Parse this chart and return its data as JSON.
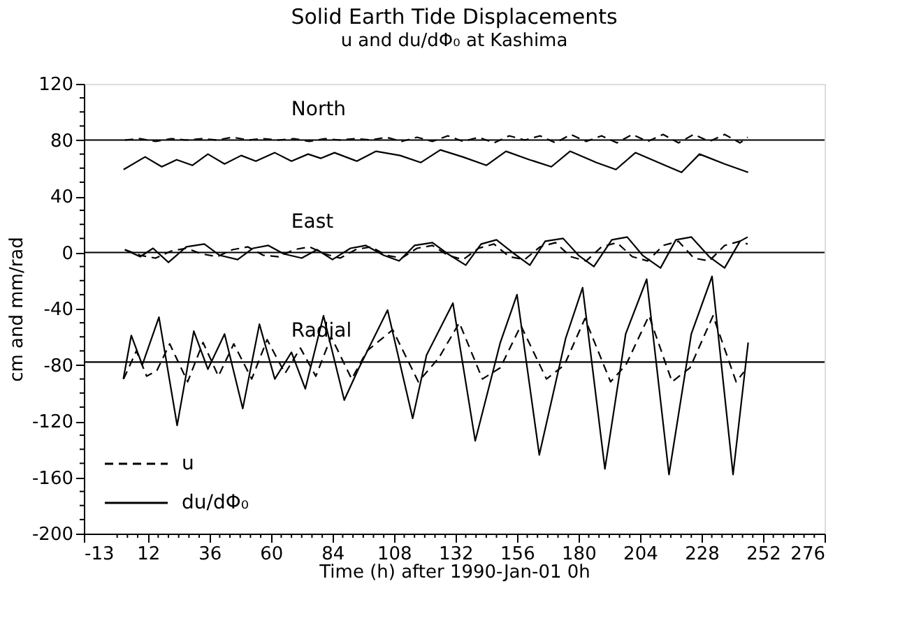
{
  "chart_data": {
    "type": "line",
    "title": "Solid Earth Tide Displacements",
    "subtitle": "u and du/dΦ₀ at Kashima",
    "xlabel": "Time (h) after 1990-Jan-01 0h",
    "ylabel": "cm and mm/rad",
    "xlim": [
      -13,
      276
    ],
    "ylim": [
      -200,
      120
    ],
    "xticks": [
      -13,
      {
        "value": 0,
        "label": null
      },
      {
        "value": 4,
        "label": null
      },
      {
        "value": 8,
        "label": null
      },
      12,
      {
        "value": 16,
        "label": null
      },
      {
        "value": 20,
        "label": null
      },
      {
        "value": 24,
        "label": null
      },
      {
        "value": 28,
        "label": null
      },
      {
        "value": 32,
        "label": null
      },
      36,
      {
        "value": 40,
        "label": null
      },
      {
        "value": 44,
        "label": null
      },
      {
        "value": 48,
        "label": null
      },
      {
        "value": 52,
        "label": null
      },
      {
        "value": 56,
        "label": null
      },
      60,
      {
        "value": 64,
        "label": null
      },
      {
        "value": 68,
        "label": null
      },
      {
        "value": 72,
        "label": null
      },
      {
        "value": 76,
        "label": null
      },
      {
        "value": 80,
        "label": null
      },
      84,
      {
        "value": 88,
        "label": null
      },
      {
        "value": 92,
        "label": null
      },
      {
        "value": 96,
        "label": null
      },
      {
        "value": 100,
        "label": null
      },
      {
        "value": 104,
        "label": null
      },
      108,
      {
        "value": 112,
        "label": null
      },
      {
        "value": 116,
        "label": null
      },
      {
        "value": 120,
        "label": null
      },
      {
        "value": 124,
        "label": null
      },
      {
        "value": 128,
        "label": null
      },
      132,
      {
        "value": 136,
        "label": null
      },
      {
        "value": 140,
        "label": null
      },
      {
        "value": 144,
        "label": null
      },
      {
        "value": 148,
        "label": null
      },
      {
        "value": 152,
        "label": null
      },
      156,
      {
        "value": 160,
        "label": null
      },
      {
        "value": 164,
        "label": null
      },
      {
        "value": 168,
        "label": null
      },
      {
        "value": 172,
        "label": null
      },
      {
        "value": 176,
        "label": null
      },
      180,
      {
        "value": 184,
        "label": null
      },
      {
        "value": 188,
        "label": null
      },
      {
        "value": 192,
        "label": null
      },
      {
        "value": 196,
        "label": null
      },
      {
        "value": 200,
        "label": null
      },
      204,
      {
        "value": 208,
        "label": null
      },
      {
        "value": 212,
        "label": null
      },
      {
        "value": 216,
        "label": null
      },
      {
        "value": 220,
        "label": null
      },
      {
        "value": 224,
        "label": null
      },
      228,
      {
        "value": 232,
        "label": null
      },
      {
        "value": 236,
        "label": null
      },
      {
        "value": 240,
        "label": null
      },
      {
        "value": 244,
        "label": null
      },
      {
        "value": 248,
        "label": null
      },
      252,
      {
        "value": 256,
        "label": null
      },
      {
        "value": 260,
        "label": null
      },
      {
        "value": 264,
        "label": null
      },
      {
        "value": 268,
        "label": null
      },
      {
        "value": 272,
        "label": null
      },
      276
    ],
    "yticks": [
      -200,
      {
        "value": -190,
        "label": null
      },
      {
        "value": -180,
        "label": null
      },
      {
        "value": -170,
        "label": null
      },
      -160,
      {
        "value": -150,
        "label": null
      },
      {
        "value": -140,
        "label": null
      },
      {
        "value": -130,
        "label": null
      },
      -120,
      {
        "value": -110,
        "label": null
      },
      {
        "value": -100,
        "label": null
      },
      {
        "value": -90,
        "label": null
      },
      -80,
      {
        "value": -70,
        "label": null
      },
      {
        "value": -60,
        "label": null
      },
      {
        "value": -50,
        "label": null
      },
      -40,
      {
        "value": -30,
        "label": null
      },
      {
        "value": -20,
        "label": null
      },
      {
        "value": -10,
        "label": null
      },
      0,
      {
        "value": 10,
        "label": null
      },
      {
        "value": 20,
        "label": null
      },
      {
        "value": 30,
        "label": null
      },
      40,
      {
        "value": 50,
        "label": null
      },
      {
        "value": 60,
        "label": null
      },
      {
        "value": 70,
        "label": null
      },
      80,
      {
        "value": 90,
        "label": null
      },
      {
        "value": 100,
        "label": null
      },
      {
        "value": 110,
        "label": null
      },
      120
    ],
    "grid": false,
    "legend": "bottom left",
    "marker": "none",
    "ref_lines": [
      {
        "axis": "y",
        "value": 80,
        "color": "#000000"
      },
      {
        "axis": "y",
        "value": 0,
        "color": "#000000"
      },
      {
        "axis": "y",
        "value": -78,
        "color": "#000000"
      }
    ],
    "annotations": [
      "North",
      "East",
      "Radial"
    ],
    "series": [
      {
        "name": "u",
        "color": "#000000",
        "line_style": "dashed",
        "x": [
          3,
          9,
          15,
          21,
          27,
          33,
          39,
          45,
          51,
          57,
          63,
          69,
          75,
          81,
          87,
          93,
          99,
          105,
          111,
          117,
          123,
          129,
          135,
          141,
          147,
          153,
          159,
          165,
          171,
          177,
          183,
          189,
          195,
          201,
          207,
          213,
          219,
          225,
          231,
          237,
          243,
          246
        ],
        "values": [
          80,
          81,
          79,
          81,
          80,
          81,
          80,
          82,
          80,
          81,
          80,
          81,
          79,
          81,
          80,
          81,
          80,
          82,
          79,
          82,
          79,
          83,
          79,
          82,
          78,
          83,
          80,
          83,
          78,
          84,
          79,
          83,
          78,
          84,
          79,
          84,
          78,
          84,
          79,
          84,
          78,
          82
        ]
      },
      {
        "name": "du/dΦ₀",
        "color": "#000000",
        "line_style": "solid",
        "x": [
          2.5,
          10.9,
          17.4,
          23.2,
          29.4,
          35.4,
          41.9,
          48.4,
          54.1,
          61.5,
          68,
          74.5,
          79.4,
          84.8,
          93.5,
          101,
          110.4,
          118.5,
          126.1,
          134.8,
          144.1,
          151.7,
          160.9,
          169.4,
          176.7,
          187,
          194.6,
          202.2,
          212.5,
          220.2,
          227.2,
          237,
          246.2
        ],
        "values": [
          59,
          68,
          61,
          66,
          62,
          70,
          63,
          69,
          65,
          71,
          65,
          70,
          67,
          71,
          65,
          72,
          69,
          64,
          73,
          68,
          62,
          72,
          66,
          61,
          72,
          64,
          59,
          71,
          63,
          57,
          70,
          63,
          57
        ]
      },
      {
        "color": "#000000",
        "line_style": "dashed",
        "x": [
          3,
          9,
          15,
          21,
          27,
          33,
          39,
          45,
          51,
          57,
          63,
          69,
          75,
          81,
          87,
          93,
          99,
          105,
          111,
          117,
          123,
          129,
          135,
          141,
          147,
          153,
          159,
          165,
          171,
          177,
          183,
          189,
          195,
          201,
          207,
          213,
          219,
          225,
          231,
          237,
          243,
          246
        ],
        "values": [
          2,
          -2,
          -4,
          1,
          3,
          -1,
          -3,
          2,
          4,
          -2,
          -3,
          2,
          4,
          -1,
          -4,
          2,
          4,
          -2,
          -4,
          3,
          5,
          -2,
          -5,
          3,
          6,
          -3,
          -5,
          4,
          7,
          -3,
          -6,
          4,
          7,
          -3,
          -6,
          5,
          8,
          -4,
          -6,
          5,
          8,
          6
        ]
      },
      {
        "color": "#000000",
        "line_style": "solid",
        "x": [
          3,
          9,
          14,
          20,
          27,
          34,
          40,
          47,
          53,
          59,
          65,
          72,
          78,
          84,
          91,
          97,
          104,
          110,
          116,
          123,
          129,
          136,
          142,
          148,
          155,
          161,
          167,
          174,
          180,
          186,
          193,
          199,
          205,
          212,
          218,
          224,
          231,
          237,
          243,
          246
        ],
        "values": [
          2,
          -3,
          3,
          -7,
          4,
          6,
          -2,
          -5,
          3,
          5,
          -1,
          -4,
          2,
          -5,
          3,
          5,
          -2,
          -6,
          5,
          7,
          -1,
          -9,
          6,
          9,
          -1,
          -9,
          8,
          10,
          -2,
          -10,
          9,
          11,
          -2,
          -11,
          9,
          11,
          -3,
          -11,
          8,
          11
        ]
      },
      {
        "color": "#000000",
        "line_style": "dashed",
        "x": [
          2.5,
          7.5,
          11.5,
          15.5,
          20.5,
          27.5,
          33.5,
          39.5,
          45.5,
          52.5,
          58.5,
          65.5,
          71.5,
          77.5,
          83.5,
          91.5,
          97.5,
          107.5,
          117.5,
          125.5,
          133.5,
          142.5,
          149.5,
          157.5,
          167.5,
          174.5,
          182.5,
          192.5,
          198.5,
          207.5,
          216.5,
          223.5,
          232.5,
          241.5,
          244.5
        ],
        "values": [
          -90,
          -70,
          -88,
          -84,
          -65,
          -92,
          -64,
          -88,
          -65,
          -90,
          -62,
          -86,
          -68,
          -88,
          -60,
          -90,
          -70,
          -55,
          -92,
          -75,
          -50,
          -90,
          -82,
          -52,
          -90,
          -80,
          -47,
          -92,
          -80,
          -45,
          -92,
          -82,
          -45,
          -92,
          -85
        ]
      },
      {
        "color": "#000000",
        "line_style": "solid",
        "x": [
          2.4,
          5.5,
          9.8,
          16.3,
          23.4,
          29.9,
          35.4,
          41.9,
          49,
          55.5,
          61.5,
          68,
          73.4,
          80.5,
          88.6,
          94.1,
          105.5,
          115.3,
          120.7,
          131,
          139.7,
          149.5,
          156,
          164.7,
          175,
          181.6,
          190.3,
          198.4,
          206.6,
          215.3,
          224,
          232.1,
          240.3,
          246.2
        ],
        "values": [
          -90,
          -59,
          -80,
          -46,
          -123,
          -56,
          -83,
          -58,
          -111,
          -51,
          -90,
          -71,
          -97,
          -45,
          -105,
          -83,
          -41,
          -118,
          -73,
          -36,
          -134,
          -64,
          -30,
          -144,
          -61,
          -25,
          -154,
          -58,
          -19,
          -158,
          -58,
          -17,
          -158,
          -64
        ]
      }
    ]
  }
}
